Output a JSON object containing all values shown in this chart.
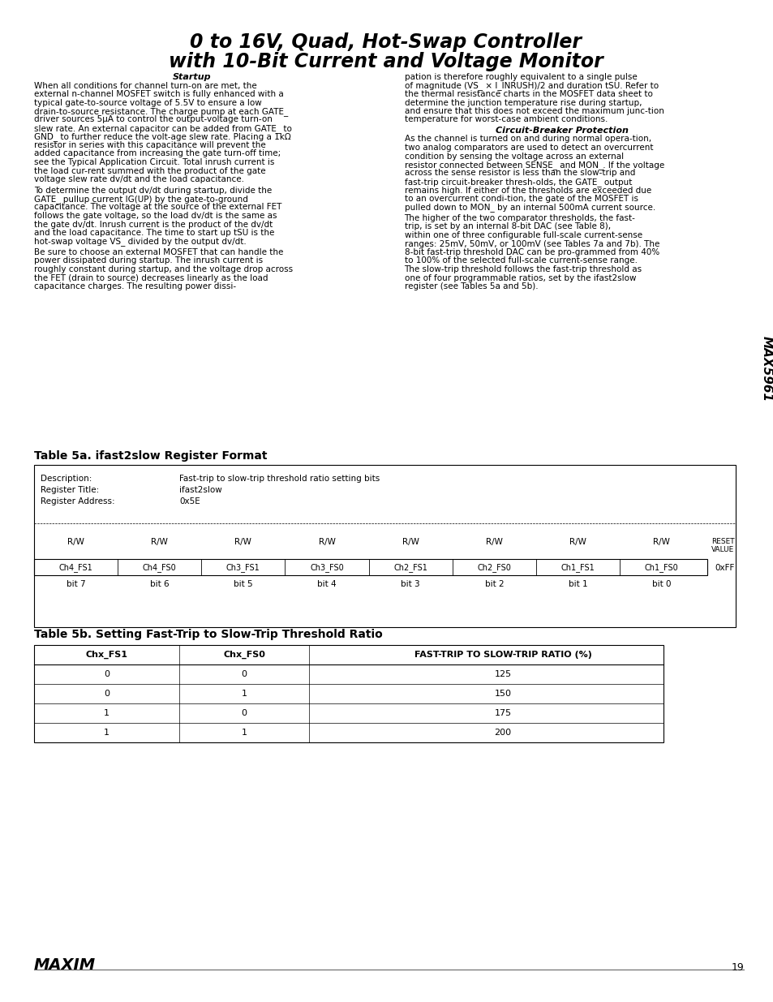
{
  "title_line1": "0 to 16V, Quad, Hot-Swap Controller",
  "title_line2": "with 10-Bit Current and Voltage Monitor",
  "right_label": "MAX5961",
  "body_text_left": [
    {
      "style": "bold_italic",
      "text": "Startup"
    },
    {
      "style": "normal",
      "text": "When all conditions for channel turn-on are met, the external n-channel MOSFET switch is fully enhanced with a typical gate-to-source voltage of 5.5V to ensure a low drain-to-source resistance. The charge pump at each GATE_ driver sources 5μA to control the output-voltage turn-on slew rate. An external capacitor can be added from GATE_ to GND_ to further reduce the volt-age slew rate. Placing a 1kΩ resistor in series with this capacitance will prevent the added capacitance from increasing the gate turn-off time; see the Typical Application Circuit. Total inrush current is the load cur-rent summed with the product of the gate voltage slew rate dv/dt and the load capacitance."
    },
    {
      "style": "normal",
      "text": "To determine the output dv/dt during startup, divide the GATE_ pullup current IG(UP) by the gate-to-ground capacitance. The voltage at the source of the external FET follows the gate voltage, so the load dv/dt is the same as the gate dv/dt. Inrush current is the product of the dv/dt and the load capacitance. The time to start up tSU is the hot-swap voltage VS_ divided by the output dv/dt."
    },
    {
      "style": "normal",
      "text": "Be sure to choose an external MOSFET that can handle the power dissipated during startup. The inrush current is roughly constant during startup, and the voltage drop across the FET (drain to source) decreases linearly as the load capacitance charges. The resulting power dissi-"
    }
  ],
  "body_text_right": [
    {
      "style": "normal",
      "text": "pation is therefore roughly equivalent to a single pulse of magnitude (VS_ × I_INRUSH)/2 and duration tSU. Refer to the thermal resistance charts in the MOSFET data sheet to determine the junction temperature rise during startup, and ensure that this does not exceed the maximum junc-tion temperature for worst-case ambient conditions."
    },
    {
      "style": "bold_italic",
      "text": "Circuit-Breaker Protection"
    },
    {
      "style": "normal",
      "text": "As the channel is turned on and during normal opera-tion, two analog comparators are used to detect an overcurrent condition by sensing the voltage across an external resistor connected between SENSE_ and MON_. If the voltage across the sense resistor is less than the slow-trip and fast-trip circuit-breaker thresh-olds, the GATE_ output remains high. If either of the thresholds are exceeded due to an overcurrent condi-tion, the gate of the MOSFET is pulled down to MON_ by an internal 500mA current source."
    },
    {
      "style": "normal",
      "text": "The higher of the two comparator thresholds, the fast-trip, is set by an internal 8-bit DAC (see Table 8), within one of three configurable full-scale current-sense ranges: 25mV, 50mV, or 100mV (see Tables 7a and 7b). The 8-bit fast-trip threshold DAC can be pro-grammed from 40% to 100% of the selected full-scale current-sense range. The slow-trip threshold follows the fast-trip threshold as one of four programmable ratios, set by the ifast2slow register (see Tables 5a and 5b)."
    }
  ],
  "table5a_title": "Table 5a. ifast2slow Register Format",
  "table5a_desc_label": "Description:",
  "table5a_desc_value": "Fast-trip to slow-trip threshold ratio setting bits",
  "table5a_reg_title_label": "Register Title:",
  "table5a_reg_title_value": "ifast2slow",
  "table5a_reg_addr_label": "Register Address:",
  "table5a_reg_addr_value": "0x5E",
  "table5a_rw_labels": [
    "R/W",
    "R/W",
    "R/W",
    "R/W",
    "R/W",
    "R/W",
    "R/W",
    "R/W"
  ],
  "table5a_reset_label": [
    "RESET",
    "VALUE"
  ],
  "table5a_bit_labels": [
    "Ch4_FS1",
    "Ch4_FS0",
    "Ch3_FS1",
    "Ch3_FS0",
    "Ch2_FS1",
    "Ch2_FS0",
    "Ch1_FS1",
    "Ch1_FS0"
  ],
  "table5a_reset_value": "0xFF",
  "table5a_bit_nums": [
    "bit 7",
    "bit 6",
    "bit 5",
    "bit 4",
    "bit 3",
    "bit 2",
    "bit 1",
    "bit 0"
  ],
  "table5b_title": "Table 5b. Setting Fast-Trip to Slow-Trip Threshold Ratio",
  "table5b_headers": [
    "Chx_FS1",
    "Chx_FS0",
    "FAST-TRIP TO SLOW-TRIP RATIO (%)"
  ],
  "table5b_data": [
    [
      "0",
      "0",
      "125"
    ],
    [
      "0",
      "1",
      "150"
    ],
    [
      "1",
      "0",
      "175"
    ],
    [
      "1",
      "1",
      "200"
    ]
  ],
  "footer_page": "19",
  "bg_color": "#ffffff",
  "text_color": "#000000",
  "table_border_color": "#000000",
  "title_color": "#000000"
}
